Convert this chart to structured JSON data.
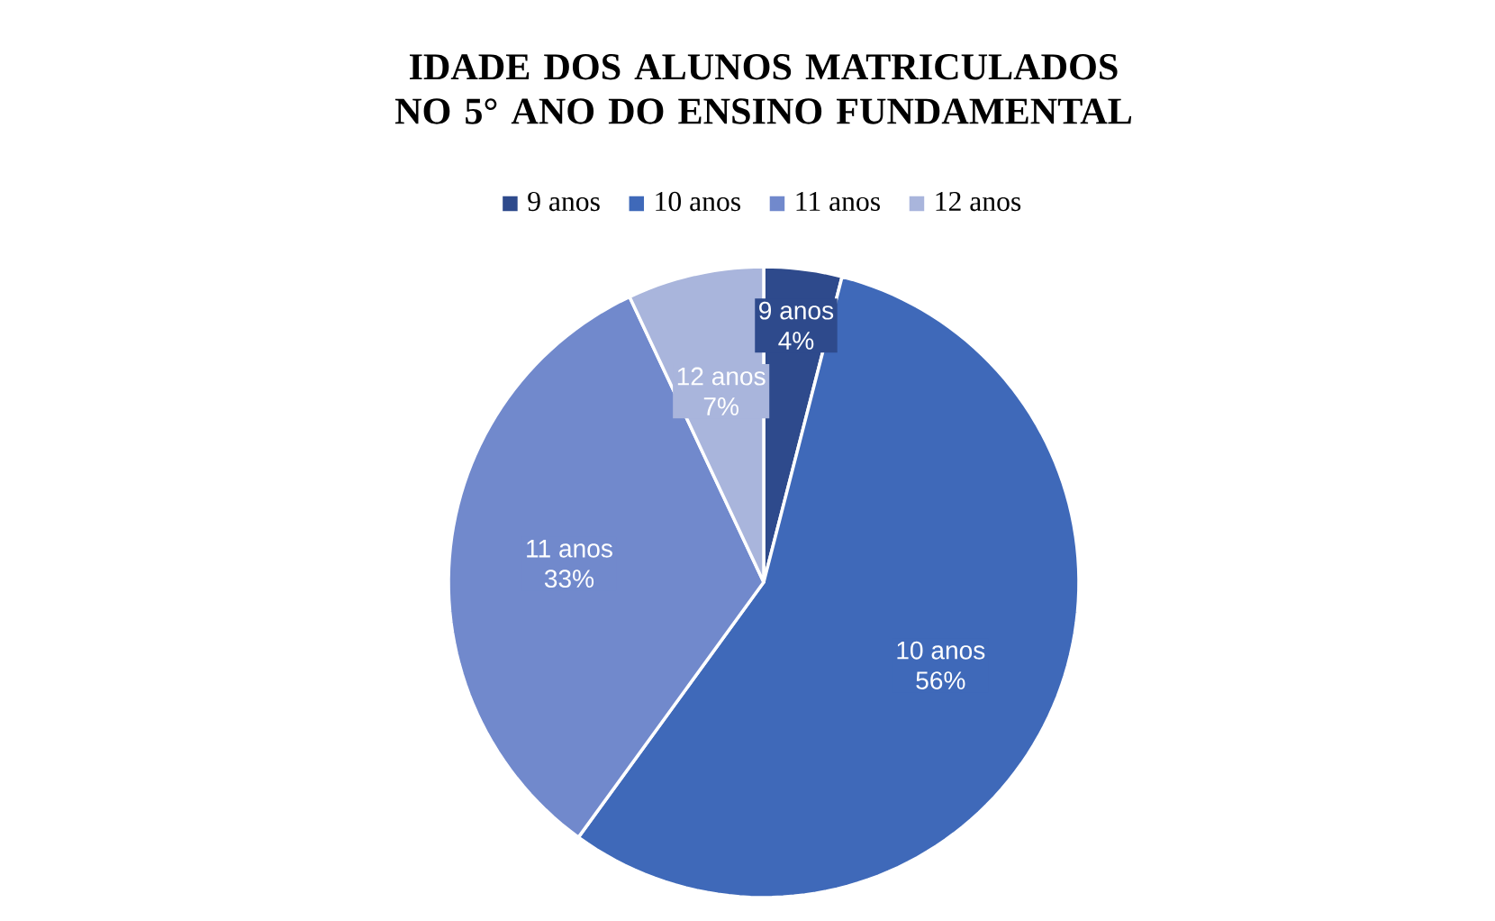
{
  "chart_data": {
    "type": "pie",
    "title": "IDADE DOS ALUNOS MATRICULADOS NO 5° ANO DO ENSINO FUNDAMENTAL",
    "categories": [
      "9 anos",
      "10 anos",
      "11 anos",
      "12 anos"
    ],
    "values": [
      4,
      56,
      33,
      7
    ],
    "value_labels": [
      "4%",
      "56%",
      "33%",
      "7%"
    ],
    "colors": [
      "#2e4a8c",
      "#3f69b9",
      "#7189cc",
      "#a9b5dc"
    ],
    "legend": "top"
  }
}
